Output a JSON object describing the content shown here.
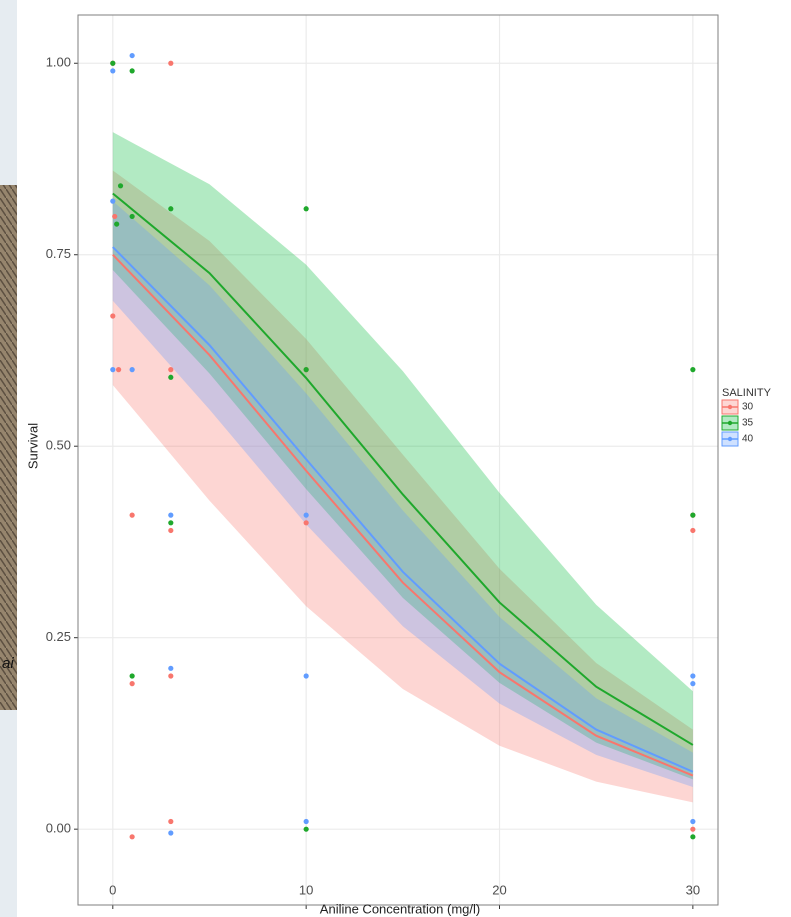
{
  "background_fragment": "ai",
  "chart_data": {
    "type": "scatter",
    "x_label": "Aniline Concentration (mg/l)",
    "y_label": "Survival",
    "xlim": [
      -1.8,
      31.3
    ],
    "ylim": [
      -0.099,
      1.063
    ],
    "xticks": [
      0,
      10,
      20,
      30
    ],
    "yticks": [
      {
        "value": 0,
        "label": "0.00"
      },
      {
        "value": 0.25,
        "label": "0.25"
      },
      {
        "value": 0.5,
        "label": "0.50"
      },
      {
        "value": 0.75,
        "label": "0.75"
      },
      {
        "value": 1,
        "label": "1.00"
      }
    ],
    "grid": true,
    "legend": "right",
    "legend_title": "SALINITY",
    "series": [
      {
        "name": "30",
        "color": "#F8766D",
        "x": [
          0,
          0.1,
          0,
          0.3,
          1,
          1,
          1,
          3,
          3,
          3,
          3,
          3,
          10,
          10,
          30,
          30,
          30
        ],
        "values": [
          1.0,
          0.8,
          0.67,
          0.6,
          0.41,
          0.19,
          -0.01,
          1.0,
          0.6,
          0.39,
          0.2,
          0.01,
          0.6,
          0.4,
          0.41,
          0.39,
          0.0
        ]
      },
      {
        "name": "35",
        "color": "#1fa82c",
        "x": [
          0,
          0.4,
          0.2,
          1,
          1,
          1,
          3,
          3,
          3,
          10,
          10,
          10,
          30,
          30,
          30
        ],
        "values": [
          1.0,
          0.84,
          0.79,
          0.99,
          0.8,
          0.2,
          0.81,
          0.59,
          0.4,
          0.81,
          0.6,
          0.0,
          0.6,
          0.41,
          -0.01
        ]
      },
      {
        "name": "40",
        "color": "#619CFF",
        "x": [
          0,
          0,
          0,
          1,
          1,
          3,
          3,
          3,
          10,
          10,
          10,
          30,
          30,
          30
        ],
        "values": [
          0.99,
          0.82,
          0.6,
          1.01,
          0.6,
          0.41,
          0.21,
          -0.005,
          0.41,
          0.2,
          0.01,
          0.2,
          0.19,
          0.01
        ]
      }
    ],
    "fits": [
      {
        "name": "30",
        "color": "#F8766D",
        "fill": "#F8766D",
        "x": [
          0,
          5,
          10,
          15,
          20,
          25,
          30
        ],
        "values": [
          0.75,
          0.619,
          0.468,
          0.322,
          0.205,
          0.122,
          0.07
        ],
        "lower": [
          0.58,
          0.429,
          0.291,
          0.183,
          0.109,
          0.062,
          0.035
        ],
        "upper": [
          0.86,
          0.768,
          0.64,
          0.489,
          0.34,
          0.217,
          0.13
        ]
      },
      {
        "name": "35",
        "color": "#1fa82c",
        "fill": "#00BA38",
        "x": [
          0,
          5,
          10,
          15,
          20,
          25,
          30
        ],
        "values": [
          0.83,
          0.726,
          0.589,
          0.437,
          0.296,
          0.186,
          0.11
        ],
        "lower": [
          0.73,
          0.595,
          0.444,
          0.302,
          0.191,
          0.113,
          0.065
        ],
        "upper": [
          0.91,
          0.842,
          0.737,
          0.598,
          0.439,
          0.293,
          0.18
        ]
      },
      {
        "name": "40",
        "color": "#619CFF",
        "fill": "#619CFF",
        "x": [
          0,
          5,
          10,
          15,
          20,
          25,
          30
        ],
        "values": [
          0.76,
          0.632,
          0.483,
          0.336,
          0.216,
          0.13,
          0.075
        ],
        "lower": [
          0.69,
          0.548,
          0.398,
          0.265,
          0.164,
          0.097,
          0.055
        ],
        "upper": [
          0.82,
          0.71,
          0.569,
          0.416,
          0.277,
          0.171,
          0.1
        ]
      }
    ]
  }
}
